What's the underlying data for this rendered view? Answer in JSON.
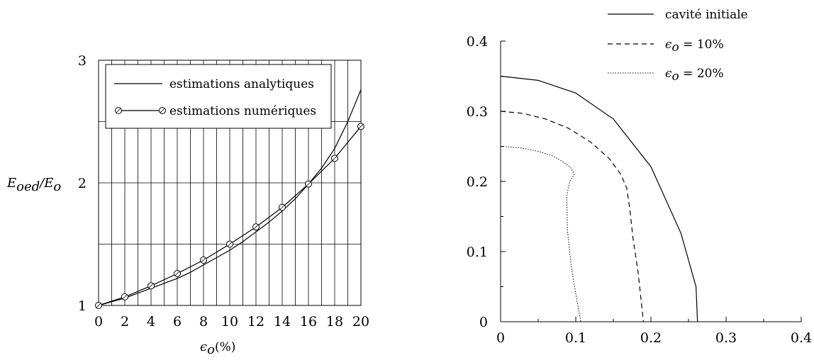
{
  "chart_data": [
    {
      "type": "line",
      "xlabel": "ϵo(%)",
      "ylabel": "Eoed/Eo",
      "xlim": [
        0,
        20
      ],
      "ylim": [
        1,
        3
      ],
      "x_ticks": [
        "0",
        "2",
        "4",
        "6",
        "8",
        "10",
        "12",
        "14",
        "16",
        "18",
        "20"
      ],
      "y_ticks": [
        "1",
        "2",
        "3"
      ],
      "grid": true,
      "legend_position": "top-left",
      "series": [
        {
          "name": "estimations analytiques",
          "style": "solid",
          "color": "#000000",
          "x": [
            0,
            1,
            2,
            3,
            4,
            5,
            6,
            7,
            8,
            9,
            10,
            11,
            12,
            13,
            14,
            15,
            16,
            17,
            18,
            19,
            20
          ],
          "y": [
            1.0,
            1.03,
            1.06,
            1.1,
            1.14,
            1.18,
            1.22,
            1.27,
            1.33,
            1.39,
            1.45,
            1.52,
            1.6,
            1.68,
            1.77,
            1.87,
            1.99,
            2.12,
            2.28,
            2.5,
            2.76
          ]
        },
        {
          "name": "estimations numériques",
          "style": "solid-circles",
          "color": "#000000",
          "x": [
            0,
            2,
            4,
            6,
            8,
            10,
            12,
            14,
            16,
            18,
            20
          ],
          "y": [
            1.0,
            1.07,
            1.16,
            1.26,
            1.37,
            1.5,
            1.64,
            1.8,
            1.99,
            2.2,
            2.46
          ]
        }
      ]
    },
    {
      "type": "line",
      "xlim": [
        0,
        0.4
      ],
      "ylim": [
        0,
        0.4
      ],
      "x_ticks": [
        "0",
        "0.1",
        "0.2",
        "0.3",
        "0.4"
      ],
      "y_ticks": [
        "0",
        "0.1",
        "0.2",
        "0.3",
        "0.4"
      ],
      "grid": false,
      "legend_position": "top-right",
      "series": [
        {
          "name": "cavité initiale",
          "style": "solid",
          "color": "#000000",
          "x": [
            0,
            0.05,
            0.1,
            0.15,
            0.2,
            0.24,
            0.26,
            0.262
          ],
          "y": [
            0.35,
            0.344,
            0.326,
            0.289,
            0.221,
            0.126,
            0.05,
            0
          ]
        },
        {
          "name": "ϵo = 10%",
          "style": "dashed",
          "color": "#000000",
          "x": [
            0,
            0.03,
            0.06,
            0.09,
            0.12,
            0.145,
            0.16,
            0.168,
            0.172,
            0.176,
            0.183,
            0.188,
            0.19
          ],
          "y": [
            0.3,
            0.297,
            0.289,
            0.276,
            0.256,
            0.232,
            0.21,
            0.19,
            0.16,
            0.12,
            0.07,
            0.02,
            0
          ]
        },
        {
          "name": "ϵo = 20%",
          "style": "dotted",
          "color": "#000000",
          "x": [
            0,
            0.025,
            0.05,
            0.07,
            0.083,
            0.093,
            0.098,
            0.092,
            0.088,
            0.089,
            0.094,
            0.1,
            0.105,
            0.107
          ],
          "y": [
            0.25,
            0.248,
            0.243,
            0.236,
            0.228,
            0.22,
            0.21,
            0.2,
            0.18,
            0.13,
            0.08,
            0.04,
            0.01,
            0
          ]
        }
      ]
    }
  ],
  "labels": {
    "left_y": {
      "main": "E",
      "sub1": "oed",
      "slash": "/E",
      "sub2": "o"
    },
    "left_x": {
      "main": "ϵ",
      "sub": "o",
      "tail": "(%)"
    },
    "legend_right": [
      {
        "main": "cavité initiale",
        "sub": "",
        "tail": ""
      },
      {
        "main": "ϵ",
        "sub": "o",
        "tail": " = 10%"
      },
      {
        "main": "ϵ",
        "sub": "o",
        "tail": " = 20%"
      }
    ]
  }
}
